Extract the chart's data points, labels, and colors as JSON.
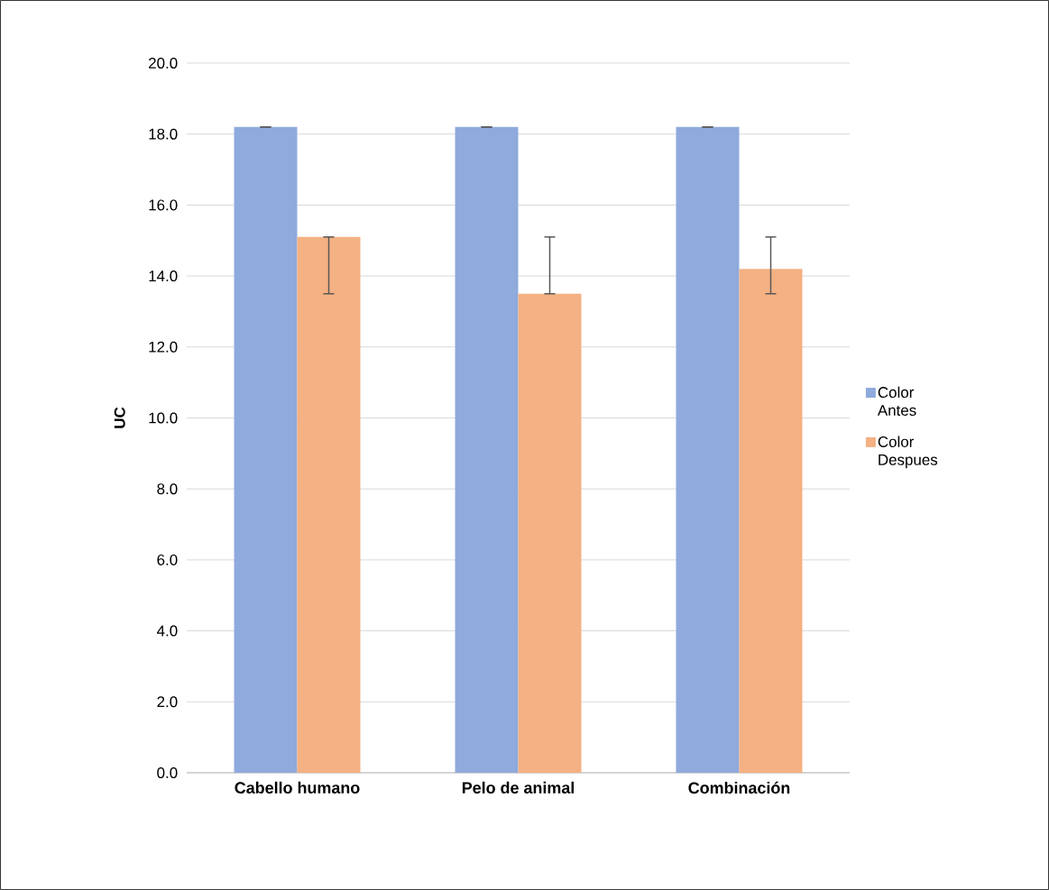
{
  "chart_data": {
    "type": "bar",
    "ylabel": "UC",
    "categories": [
      "Cabello humano",
      "Pelo de animal",
      "Combinación"
    ],
    "series": [
      {
        "name": "Color Antes",
        "color": "#8faadc",
        "values": [
          18.2,
          18.2,
          18.2
        ],
        "errors": [
          0,
          0,
          0
        ]
      },
      {
        "name": "Color Despues",
        "color": "#f4b183",
        "values": [
          15.1,
          13.5,
          14.2
        ],
        "errors": [
          [
            13.5,
            15.1
          ],
          [
            13.5,
            15.1
          ],
          [
            13.5,
            15.1
          ]
        ]
      }
    ],
    "ylim": [
      0,
      20
    ],
    "yticks": [
      {
        "value": 0,
        "label": "0.0"
      },
      {
        "value": 2,
        "label": "2.0"
      },
      {
        "value": 4,
        "label": "4.0"
      },
      {
        "value": 6,
        "label": "6.0"
      },
      {
        "value": 8,
        "label": "8.0"
      },
      {
        "value": 10,
        "label": "10.0"
      },
      {
        "value": 12,
        "label": "12.0"
      },
      {
        "value": 14,
        "label": "14.0"
      },
      {
        "value": 16,
        "label": "16.0"
      },
      {
        "value": 18,
        "label": "18.0"
      },
      {
        "value": 20,
        "label": "20.0"
      }
    ],
    "grid": "y",
    "legend": "right"
  }
}
